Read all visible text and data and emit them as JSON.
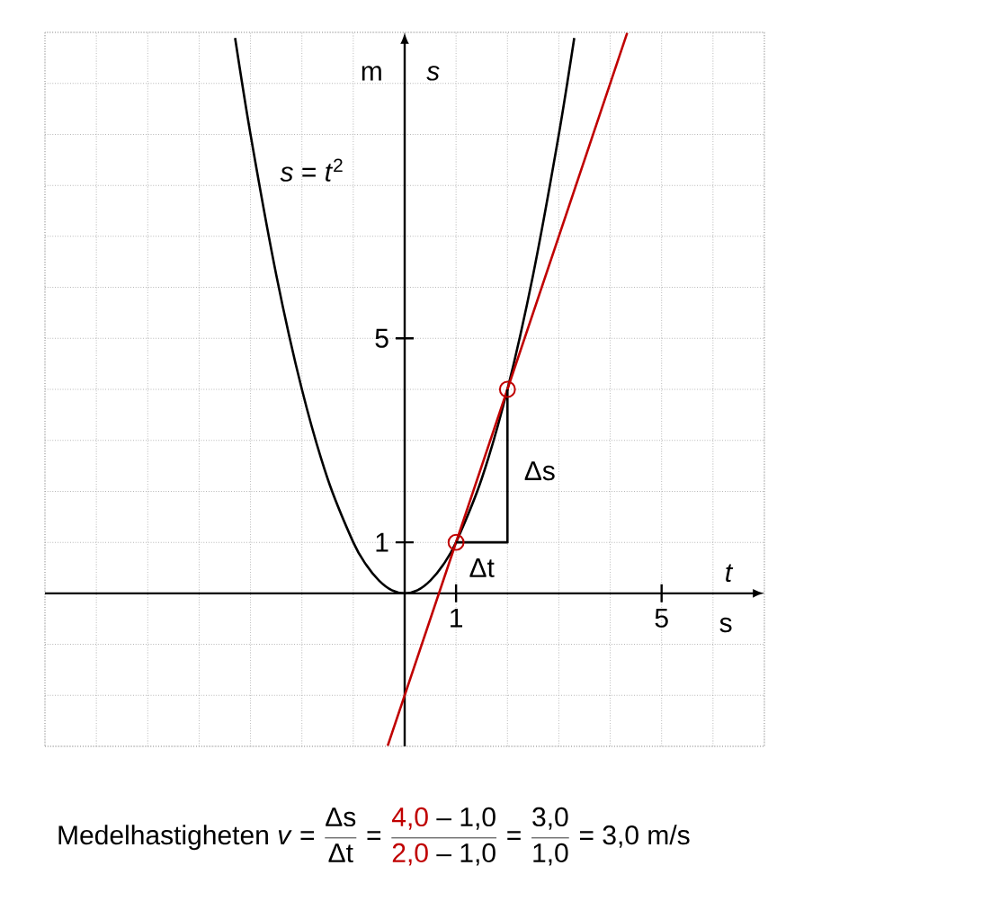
{
  "chart_data": {
    "type": "line",
    "xlabel": "t",
    "ylabel": "s",
    "xlim": [
      -7,
      7
    ],
    "ylim": [
      -3,
      11
    ],
    "xticks": [
      1,
      5
    ],
    "yticks": [
      1,
      5
    ],
    "grid": true,
    "series": [
      {
        "color": "#000000",
        "x": [
          -3.3,
          -3,
          -2.5,
          -2,
          -1.5,
          -1,
          -0.75,
          -0.5,
          -0.25,
          0,
          0.25,
          0.5,
          0.75,
          1,
          1.5,
          2,
          2.5,
          3,
          3.3
        ],
        "values": [
          10.89,
          9,
          6.25,
          4,
          2.25,
          1,
          0.56,
          0.25,
          0.06,
          0,
          0.06,
          0.25,
          0.56,
          1,
          2.25,
          4,
          6.25,
          9,
          10.89
        ]
      },
      {
        "color": "#c00000",
        "x": [
          -0.33,
          4.33
        ],
        "values": [
          -2.99,
          10.99
        ]
      },
      {
        "color": "#000000",
        "x": [
          1,
          2,
          2
        ],
        "values": [
          1,
          1,
          4
        ]
      },
      {
        "type": "scatter",
        "color": "#c00000",
        "marker": "circle",
        "x": [
          1,
          2
        ],
        "values": [
          1,
          4
        ]
      }
    ],
    "annotations": [
      "*s* = *t*$^{2}$",
      "Δs",
      "Δt",
      "m",
      "s",
      "Medelhastigheten *v* =",
      "Δs",
      "Δt",
      "=",
      "4,0",
      "– 1,0",
      "2,0",
      "– 1,0",
      "=",
      "3,0",
      "1,0",
      "= 3,0 m/s"
    ]
  }
}
